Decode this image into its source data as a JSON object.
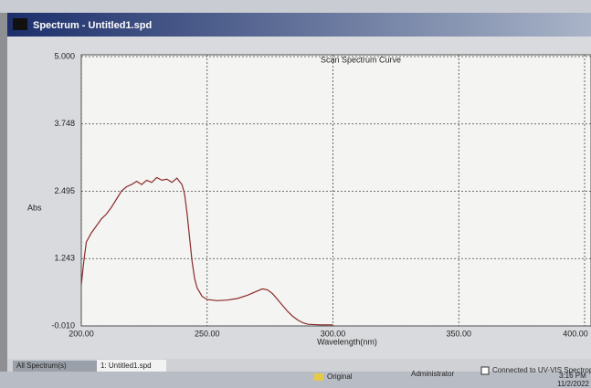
{
  "window": {
    "title": "Spectrum - Untitled1.spd"
  },
  "chart_data": {
    "type": "line",
    "title": "Scan Spectrum Curve",
    "x_label": "Wavelength(nm)",
    "y_label": "Abs",
    "xlim": [
      200,
      400
    ],
    "xticks": [
      {
        "value": 200,
        "label": "200.00"
      },
      {
        "value": 250,
        "label": "250.00"
      },
      {
        "value": 300,
        "label": "300.00"
      },
      {
        "value": 350,
        "label": "350.00"
      },
      {
        "value": 400,
        "label": "400.00"
      }
    ],
    "ylim": [
      -0.01,
      5
    ],
    "yticks": [
      {
        "value": -0.01,
        "label": "-0.010"
      },
      {
        "value": 1.243,
        "label": "1.243"
      },
      {
        "value": 2.495,
        "label": "2.495"
      },
      {
        "value": 3.748,
        "label": "3.748"
      },
      {
        "value": 5,
        "label": "5.000"
      }
    ],
    "grid": true,
    "x": [
      200,
      201,
      202,
      204,
      206,
      208,
      210,
      212,
      214,
      216,
      218,
      220,
      222,
      224,
      226,
      228,
      230,
      232,
      234,
      236,
      238,
      239,
      240,
      241,
      242,
      243,
      244,
      245,
      246,
      248,
      250,
      254,
      258,
      262,
      266,
      270,
      272,
      274,
      276,
      278,
      280,
      282,
      284,
      286,
      288,
      290,
      295,
      300
    ],
    "series": [
      {
        "color": "#8a2b2b",
        "values": [
          0.76,
          1.2,
          1.55,
          1.72,
          1.85,
          1.98,
          2.07,
          2.2,
          2.35,
          2.5,
          2.58,
          2.62,
          2.68,
          2.62,
          2.7,
          2.66,
          2.75,
          2.7,
          2.72,
          2.66,
          2.74,
          2.68,
          2.62,
          2.45,
          2.1,
          1.64,
          1.2,
          0.88,
          0.7,
          0.54,
          0.48,
          0.46,
          0.47,
          0.5,
          0.56,
          0.64,
          0.68,
          0.66,
          0.59,
          0.48,
          0.37,
          0.26,
          0.17,
          0.1,
          0.05,
          0.02,
          0.01,
          0.01
        ]
      }
    ]
  },
  "tabs": [
    "All Spectrum(s)",
    "1: Untitled1.spd"
  ],
  "status_bar": [
    "Original",
    "Administrator",
    "Connected to UV-VIS Spectroph"
  ],
  "taskbar": {
    "time": "3:16 PM",
    "date": "11/2/2022"
  }
}
